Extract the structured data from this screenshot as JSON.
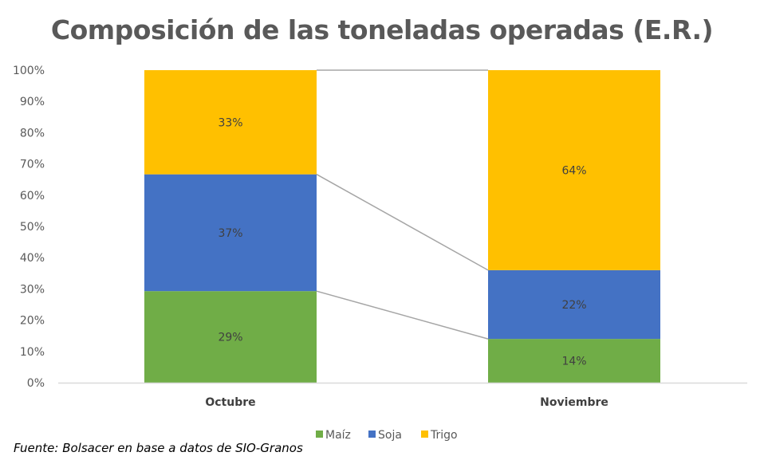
{
  "chart_data": {
    "type": "bar",
    "stacked": true,
    "percent": true,
    "title": "Composición de las toneladas operadas (E.R.)",
    "categories": [
      "Octubre",
      "Noviembre"
    ],
    "series": [
      {
        "name": "Maíz",
        "color": "#70AD47",
        "values": [
          29,
          14
        ],
        "labels": [
          "29%",
          "14%"
        ]
      },
      {
        "name": "Soja",
        "color": "#4472C4",
        "values": [
          37,
          22
        ],
        "labels": [
          "37%",
          "22%"
        ]
      },
      {
        "name": "Trigo",
        "color": "#FFC000",
        "values": [
          33,
          64
        ],
        "labels": [
          "33%",
          "64%"
        ]
      }
    ],
    "ylim": [
      0,
      100
    ],
    "yticks": [
      "0%",
      "10%",
      "20%",
      "30%",
      "40%",
      "50%",
      "60%",
      "70%",
      "80%",
      "90%",
      "100%"
    ],
    "series_lines": true,
    "grid": false,
    "legend": "bottom"
  },
  "source": "Fuente: Bolsacer en base a datos de SIO-Granos"
}
